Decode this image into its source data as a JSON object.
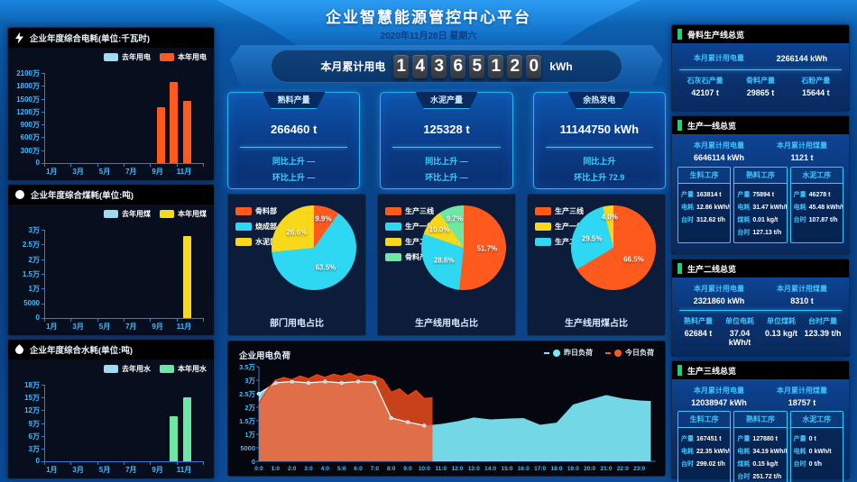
{
  "header": {
    "title": "企业智慧能源管控中心平台",
    "date": "2020年11月28日 星期六"
  },
  "counter": {
    "label": "本月累计用电",
    "digits": "14365120",
    "unit": "kWh"
  },
  "stat_cards": [
    {
      "title": "熟料产量",
      "value": "266460 t",
      "line1": "同比上升 —",
      "line2": "环比上升 —"
    },
    {
      "title": "水泥产量",
      "value": "125328 t",
      "line1": "同比上升 —",
      "line2": "环比上升 —"
    },
    {
      "title": "余热发电",
      "value": "11144750 kWh",
      "line1": "同比上升",
      "line2": "环比上升 72.9"
    }
  ],
  "colors": {
    "orange": "#ff5a1e",
    "cyan": "#2fd8f2",
    "yellow": "#f7d81a",
    "green": "#6ce8a4",
    "lastyear": "#9fdcf2",
    "axis": "#2f7fd6",
    "tick_text": "#45b9ff",
    "accent_green": "#00e07a"
  },
  "chart_data": [
    {
      "type": "bar",
      "title": "企业年度综合电耗(单位:千瓦时)",
      "categories": [
        "1月",
        "2月",
        "3月",
        "4月",
        "5月",
        "6月",
        "7月",
        "8月",
        "9月",
        "10月",
        "11月",
        "12月"
      ],
      "xticks": [
        "1月",
        "3月",
        "5月",
        "7月",
        "9月",
        "11月"
      ],
      "yticks": [
        "0",
        "300万",
        "600万",
        "900万",
        "1200万",
        "1500万",
        "1800万",
        "2100万"
      ],
      "ylim": [
        0,
        21000000
      ],
      "series": [
        {
          "name": "去年用电",
          "color": "#9fdcf2",
          "values": [
            0,
            0,
            0,
            0,
            0,
            0,
            0,
            0,
            0,
            0,
            0,
            0
          ]
        },
        {
          "name": "本年用电",
          "color": "#ff5a1e",
          "values": [
            0,
            0,
            0,
            0,
            0,
            0,
            0,
            0,
            13000000,
            19000000,
            14500000,
            0
          ]
        }
      ]
    },
    {
      "type": "bar",
      "title": "企业年度综合煤耗(单位:吨)",
      "categories": [
        "1月",
        "2月",
        "3月",
        "4月",
        "5月",
        "6月",
        "7月",
        "8月",
        "9月",
        "10月",
        "11月",
        "12月"
      ],
      "xticks": [
        "1月",
        "3月",
        "5月",
        "7月",
        "9月",
        "11月"
      ],
      "yticks": [
        "0",
        "5000",
        "1万",
        "1.5万",
        "2万",
        "2.5万",
        "3万"
      ],
      "ylim": [
        0,
        30000
      ],
      "series": [
        {
          "name": "去年用煤",
          "color": "#9fdcf2",
          "values": [
            0,
            0,
            0,
            0,
            0,
            0,
            0,
            0,
            0,
            0,
            0,
            0
          ]
        },
        {
          "name": "本年用煤",
          "color": "#f7d81a",
          "values": [
            0,
            0,
            0,
            0,
            0,
            0,
            0,
            0,
            0,
            0,
            28000,
            0
          ]
        }
      ]
    },
    {
      "type": "bar",
      "title": "企业年度综合水耗(单位:吨)",
      "categories": [
        "1月",
        "2月",
        "3月",
        "4月",
        "5月",
        "6月",
        "7月",
        "8月",
        "9月",
        "10月",
        "11月",
        "12月"
      ],
      "xticks": [
        "1月",
        "3月",
        "5月",
        "7月",
        "9月",
        "11月"
      ],
      "yticks": [
        "0",
        "3万",
        "6万",
        "9万",
        "12万",
        "15万",
        "18万"
      ],
      "ylim": [
        0,
        180000
      ],
      "series": [
        {
          "name": "去年用水",
          "color": "#9fdcf2",
          "values": [
            0,
            0,
            0,
            0,
            0,
            0,
            0,
            0,
            0,
            0,
            0,
            0
          ]
        },
        {
          "name": "本年用水",
          "color": "#6ce8a4",
          "values": [
            0,
            0,
            0,
            0,
            0,
            0,
            0,
            0,
            0,
            105000,
            150000,
            0
          ]
        }
      ]
    },
    {
      "type": "pie",
      "title": "部门用电占比",
      "legend": [
        {
          "label": "骨料部",
          "color": "#ff5a1e"
        },
        {
          "label": "烧成部",
          "color": "#2fd8f2"
        },
        {
          "label": "水泥部",
          "color": "#f7d81a"
        }
      ],
      "slices": [
        {
          "label": "骨料部",
          "value": 9.9,
          "color": "#ff5a1e"
        },
        {
          "label": "烧成部",
          "value": 63.5,
          "color": "#2fd8f2"
        },
        {
          "label": "水泥部",
          "value": 26.6,
          "color": "#f7d81a"
        }
      ]
    },
    {
      "type": "pie",
      "title": "生产线用电占比",
      "legend": [
        {
          "label": "生产三线",
          "color": "#ff5a1e"
        },
        {
          "label": "生产一线",
          "color": "#2fd8f2"
        },
        {
          "label": "生产二线",
          "color": "#f7d81a"
        },
        {
          "label": "骨料产线",
          "color": "#6ce8a4"
        }
      ],
      "slices": [
        {
          "label": "生产三线",
          "value": 51.7,
          "color": "#ff5a1e"
        },
        {
          "label": "生产一线",
          "value": 28.6,
          "color": "#2fd8f2"
        },
        {
          "label": "生产二线",
          "value": 10.0,
          "color": "#f7d81a"
        },
        {
          "label": "骨料产线",
          "value": 9.7,
          "color": "#6ce8a4"
        }
      ]
    },
    {
      "type": "pie",
      "title": "生产线用煤占比",
      "legend": [
        {
          "label": "生产三线",
          "color": "#ff5a1e"
        },
        {
          "label": "生产一线",
          "color": "#f7d81a"
        },
        {
          "label": "生产二线",
          "color": "#2fd8f2"
        }
      ],
      "slices": [
        {
          "label": "生产三线",
          "value": 66.5,
          "color": "#ff5a1e"
        },
        {
          "label": "生产二线",
          "value": 29.5,
          "color": "#2fd8f2"
        },
        {
          "label": "生产一线",
          "value": 4.0,
          "color": "#f7d81a"
        }
      ]
    },
    {
      "type": "area",
      "title": "企业用电负荷",
      "ylim": [
        0,
        35000
      ],
      "yticks": [
        "0",
        "5000",
        "1万",
        "1.5万",
        "2万",
        "2.5万",
        "3万",
        "3.5万"
      ],
      "xlim": [
        0,
        24
      ],
      "xticks": [
        "0:0",
        "1:0",
        "2:0",
        "3:0",
        "4:0",
        "5:0",
        "6:0",
        "7:0",
        "8:0",
        "9:0",
        "10:0",
        "11:0",
        "12:0",
        "13:0",
        "14:0",
        "15:0",
        "16:0",
        "17:0",
        "18:0",
        "19:0",
        "20:0",
        "21:0",
        "22:0",
        "23:0"
      ],
      "legend": [
        {
          "label": "昨日负荷",
          "color": "#7de9f8"
        },
        {
          "label": "今日负荷",
          "color": "#ff5a1e"
        }
      ],
      "series": [
        {
          "name": "昨日负荷",
          "color": "#7de9f8",
          "x": [
            0,
            1,
            2,
            3,
            4,
            5,
            6,
            7,
            8,
            9,
            10,
            11,
            12,
            13,
            14,
            15,
            16,
            17,
            18,
            19,
            20,
            21,
            22,
            23,
            23.7
          ],
          "values": [
            25000,
            29000,
            29500,
            29000,
            29500,
            29000,
            29500,
            29200,
            16000,
            14500,
            13200,
            13800,
            14800,
            16200,
            15500,
            15800,
            16000,
            13500,
            14300,
            21000,
            22800,
            24500,
            23200,
            22500,
            22300
          ]
        },
        {
          "name": "今日负荷",
          "color": "#ff5a1e",
          "x": [
            0,
            0.5,
            1,
            1.5,
            2,
            2.5,
            3,
            3.5,
            4,
            4.5,
            5,
            5.5,
            6,
            6.5,
            7,
            7.5,
            8,
            8.5,
            9,
            9.5,
            10,
            10.5
          ],
          "values": [
            21500,
            26500,
            30000,
            31000,
            30200,
            31500,
            30500,
            32000,
            31000,
            32200,
            31500,
            32500,
            31200,
            32000,
            31500,
            30200,
            25500,
            26800,
            24200,
            26200,
            23200,
            23500
          ]
        }
      ]
    }
  ],
  "right_panels": {
    "aggregate": {
      "title": "骨料生产线总览",
      "kv": {
        "label": "本月累计用电量",
        "value": "2266144 kWh"
      },
      "cols": [
        {
          "label": "石灰石产量",
          "value": "42107 t"
        },
        {
          "label": "骨料产量",
          "value": "29865 t"
        },
        {
          "label": "石粉产量",
          "value": "15644 t"
        }
      ]
    },
    "line1": {
      "title": "生产一线总览",
      "kv1": {
        "label": "本月累计用电量",
        "value": "6646114 kWh"
      },
      "kv2": {
        "label": "本月累计用煤量",
        "value": "1121 t"
      },
      "process_cards": [
        {
          "title": "生料工序",
          "rows": [
            {
              "label": "产量",
              "value": "163814 t"
            },
            {
              "label": "电耗",
              "value": "12.86 kWh/t"
            },
            {
              "label": "台时",
              "value": "312.62 t/h"
            }
          ]
        },
        {
          "title": "熟料工序",
          "rows": [
            {
              "label": "产量",
              "value": "75894 t"
            },
            {
              "label": "电耗",
              "value": "31.47 kWh/t"
            },
            {
              "label": "煤耗",
              "value": "0.01 kg/t"
            },
            {
              "label": "台时",
              "value": "127.13 t/h"
            }
          ]
        },
        {
          "title": "水泥工序",
          "rows": [
            {
              "label": "产量",
              "value": "46278 t"
            },
            {
              "label": "电耗",
              "value": "45.48 kWh/t"
            },
            {
              "label": "台时",
              "value": "107.87 t/h"
            }
          ]
        }
      ]
    },
    "line2": {
      "title": "生产二线总览",
      "kv1": {
        "label": "本月累计用电量",
        "value": "2321860 kWh"
      },
      "kv2": {
        "label": "本月累计用煤量",
        "value": "8310 t"
      },
      "cols": [
        {
          "label": "熟料产量",
          "value": "62684 t"
        },
        {
          "label": "单位电耗",
          "value": "37.04 kWh/t"
        },
        {
          "label": "单位煤耗",
          "value": "0.13 kg/t"
        },
        {
          "label": "台时产量",
          "value": "123.39 t/h"
        }
      ]
    },
    "line3": {
      "title": "生产三线总览",
      "kv1": {
        "label": "本月累计用电量",
        "value": "12038947 kWh"
      },
      "kv2": {
        "label": "本月累计用煤量",
        "value": "18757 t"
      },
      "process_cards": [
        {
          "title": "生料工序",
          "rows": [
            {
              "label": "产量",
              "value": "167451 t"
            },
            {
              "label": "电耗",
              "value": "22.35 kWh/t"
            },
            {
              "label": "台时",
              "value": "299.02 t/h"
            }
          ]
        },
        {
          "title": "熟料工序",
          "rows": [
            {
              "label": "产量",
              "value": "127880 t"
            },
            {
              "label": "电耗",
              "value": "34.19 kWh/t"
            },
            {
              "label": "煤耗",
              "value": "0.15 kg/t"
            },
            {
              "label": "台时",
              "value": "251.72 t/h"
            }
          ]
        },
        {
          "title": "水泥工序",
          "rows": [
            {
              "label": "产量",
              "value": "0 t"
            },
            {
              "label": "电耗",
              "value": "0 kWh/t"
            },
            {
              "label": "台时",
              "value": "0 t/h"
            }
          ]
        }
      ]
    }
  }
}
